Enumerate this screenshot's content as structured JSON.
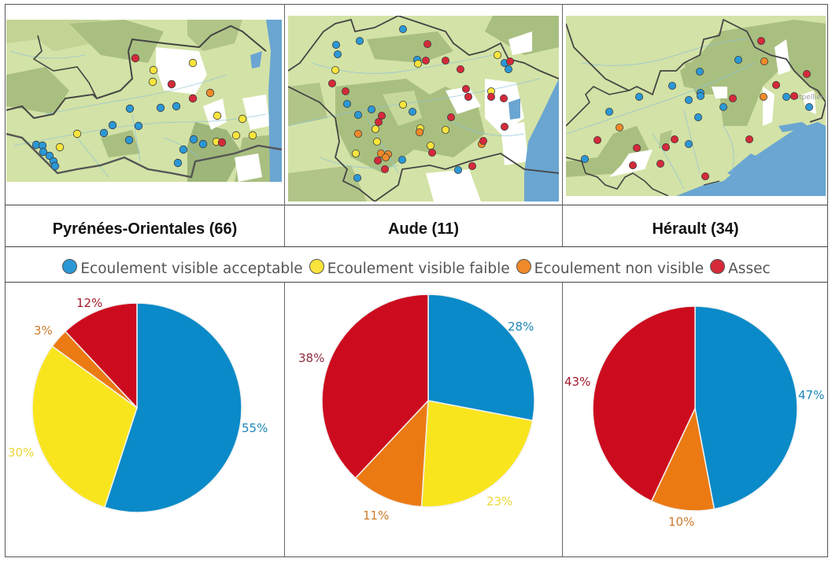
{
  "colors": {
    "acceptable": "#0a8ac8",
    "faible": "#f9e51e",
    "non_visible": "#eb7a13",
    "assec": "#cc0c1e",
    "border": "#444444"
  },
  "legend": {
    "items": [
      {
        "key": "acceptable",
        "label": "Ecoulement visible acceptable",
        "color": "#2b98d6"
      },
      {
        "key": "faible",
        "label": "Ecoulement visible faible",
        "color": "#fae43c"
      },
      {
        "key": "non_visible",
        "label": "Ecoulement non visible",
        "color": "#f08a2a"
      },
      {
        "key": "assec",
        "label": "Assec",
        "color": "#d42a3a"
      }
    ]
  },
  "departments": [
    {
      "name": "Pyrénées-Orientales (66)"
    },
    {
      "name": "Aude (11)"
    },
    {
      "name": "Hérault (34)",
      "map_label": "Montpellier"
    }
  ],
  "chart_data": [
    {
      "type": "pie",
      "title": "Pyrénées-Orientales (66)",
      "categories": [
        "Ecoulement visible acceptable",
        "Ecoulement visible faible",
        "Ecoulement non visible",
        "Assec"
      ],
      "values": [
        55,
        30,
        3,
        12
      ],
      "labels": [
        "55%",
        "30%",
        "3%",
        "12%"
      ],
      "colors": [
        "#0a8ac8",
        "#f9e51e",
        "#eb7a13",
        "#cc0c1e"
      ],
      "start_angle": "12 o'clock, clockwise",
      "legend_position": "top (shared row)"
    },
    {
      "type": "pie",
      "title": "Aude (11)",
      "categories": [
        "Ecoulement visible acceptable",
        "Ecoulement visible faible",
        "Ecoulement non visible",
        "Assec"
      ],
      "values": [
        28,
        23,
        11,
        38
      ],
      "labels": [
        "28%",
        "23%",
        "11%",
        "38%"
      ],
      "colors": [
        "#0a8ac8",
        "#f9e51e",
        "#eb7a13",
        "#cc0c1e"
      ],
      "start_angle": "12 o'clock, clockwise",
      "legend_position": "top (shared row)"
    },
    {
      "type": "pie",
      "title": "Hérault (34)",
      "categories": [
        "Ecoulement visible acceptable",
        "Ecoulement visible faible",
        "Ecoulement non visible",
        "Assec"
      ],
      "values": [
        47,
        0,
        10,
        43
      ],
      "labels": [
        "47%",
        "",
        "10%",
        "43%"
      ],
      "colors": [
        "#0a8ac8",
        "#f9e51e",
        "#eb7a13",
        "#cc0c1e"
      ],
      "start_angle": "12 o'clock, clockwise",
      "legend_position": "top (shared row)"
    }
  ]
}
